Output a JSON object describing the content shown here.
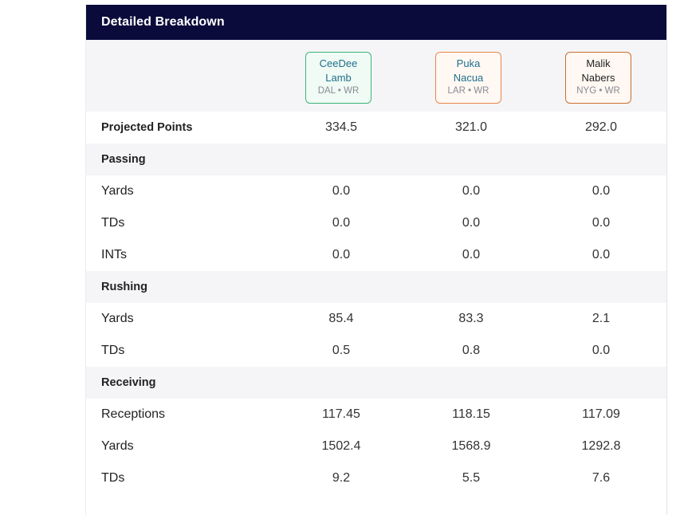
{
  "header": {
    "title": "Detailed Breakdown"
  },
  "players": [
    {
      "first": "CeeDee",
      "last": "Lamb",
      "meta": "DAL • WR",
      "border": "#3cb37a",
      "bg": "#f0fbf5",
      "text_color": "#1f6f8b"
    },
    {
      "first": "Puka",
      "last": "Nacua",
      "meta": "LAR • WR",
      "border": "#e8874a",
      "bg": "#fff8f3",
      "text_color": "#1f6f8b"
    },
    {
      "first": "Malik",
      "last": "Nabers",
      "meta": "NYG • WR",
      "border": "#c9702e",
      "bg": "#fff8f3",
      "text_color": "#222222"
    }
  ],
  "rows": [
    {
      "label": "Projected Points",
      "type": "stat-bold",
      "values": [
        "334.5",
        "321.0",
        "292.0"
      ]
    },
    {
      "label": "Passing",
      "type": "section"
    },
    {
      "label": "Yards",
      "type": "stat",
      "values": [
        "0.0",
        "0.0",
        "0.0"
      ]
    },
    {
      "label": "TDs",
      "type": "stat",
      "values": [
        "0.0",
        "0.0",
        "0.0"
      ]
    },
    {
      "label": "INTs",
      "type": "stat",
      "values": [
        "0.0",
        "0.0",
        "0.0"
      ]
    },
    {
      "label": "Rushing",
      "type": "section"
    },
    {
      "label": "Yards",
      "type": "stat",
      "values": [
        "85.4",
        "83.3",
        "2.1"
      ]
    },
    {
      "label": "TDs",
      "type": "stat",
      "values": [
        "0.5",
        "0.8",
        "0.0"
      ]
    },
    {
      "label": "Receiving",
      "type": "section"
    },
    {
      "label": "Receptions",
      "type": "stat",
      "values": [
        "117.45",
        "118.15",
        "117.09"
      ]
    },
    {
      "label": "Yards",
      "type": "stat",
      "values": [
        "1502.4",
        "1568.9",
        "1292.8"
      ]
    },
    {
      "label": "TDs",
      "type": "stat",
      "values": [
        "9.2",
        "5.5",
        "7.6"
      ]
    }
  ]
}
